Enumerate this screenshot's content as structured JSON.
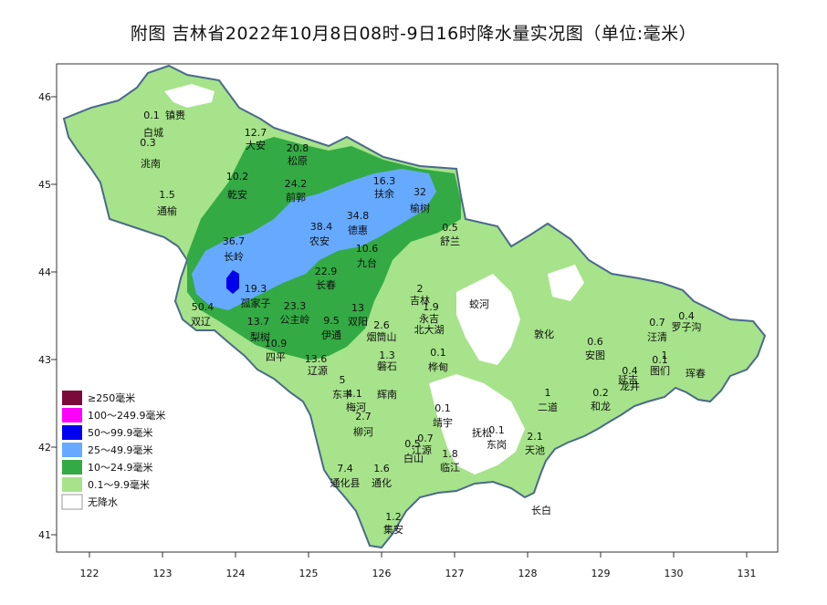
{
  "title": "附图 吉林省2022年10月8日08时-9日16时降水量实况图（单位:毫米）",
  "axes": {
    "x_ticks": [
      "122",
      "123",
      "124",
      "125",
      "126",
      "127",
      "128",
      "129",
      "130",
      "131"
    ],
    "y_ticks": [
      "46",
      "45",
      "44",
      "43",
      "42",
      "41"
    ]
  },
  "legend": [
    {
      "label": "≥250毫米",
      "color": "#7a0a3a"
    },
    {
      "label": "100～249.9毫米",
      "color": "#ff00ff"
    },
    {
      "label": "50～99.9毫米",
      "color": "#0000ee"
    },
    {
      "label": "25～49.9毫米",
      "color": "#66aaff"
    },
    {
      "label": "10～24.9毫米",
      "color": "#33aa44"
    },
    {
      "label": "0.1～9.9毫米",
      "color": "#a6e38a"
    },
    {
      "label": "无降水",
      "color": "#ffffff"
    }
  ],
  "stations": [
    {
      "name": "镇赉",
      "value": "0.1"
    },
    {
      "name": "白城",
      "value": "0.3"
    },
    {
      "name": "洮南",
      "value": ""
    },
    {
      "name": "大安",
      "value": "12.7"
    },
    {
      "name": "松原",
      "value": "20.8"
    },
    {
      "name": "前郭",
      "value": "24.2"
    },
    {
      "name": "乾安",
      "value": "10.2"
    },
    {
      "name": "通榆",
      "value": "1.5"
    },
    {
      "name": "扶余",
      "value": "16.3"
    },
    {
      "name": "榆树",
      "value": "32"
    },
    {
      "name": "农安",
      "value": "38.4"
    },
    {
      "name": "德惠",
      "value": "34.8"
    },
    {
      "name": "九台",
      "value": "10.6"
    },
    {
      "name": "舒兰",
      "value": "0.5"
    },
    {
      "name": "长岭",
      "value": "36.7"
    },
    {
      "name": "长春",
      "value": "22.9"
    },
    {
      "name": "孤家子",
      "value": "19.3"
    },
    {
      "name": "双辽",
      "value": "50.4"
    },
    {
      "name": "公主岭",
      "value": "23.3"
    },
    {
      "name": "梨树",
      "value": "13.7"
    },
    {
      "name": "四平",
      "value": "10.9"
    },
    {
      "name": "伊通",
      "value": "9.5"
    },
    {
      "name": "双阳",
      "value": "13"
    },
    {
      "name": "吉林",
      "value": "2"
    },
    {
      "name": "永吉",
      "value": "1.9"
    },
    {
      "name": "北大湖",
      "value": ""
    },
    {
      "name": "蛟河",
      "value": ""
    },
    {
      "name": "烟筒山",
      "value": "2.6"
    },
    {
      "name": "磐石",
      "value": "1.3"
    },
    {
      "name": "桦甸",
      "value": "0.1"
    },
    {
      "name": "辽源",
      "value": "13.6"
    },
    {
      "name": "东丰",
      "value": "5"
    },
    {
      "name": "梅河",
      "value": "4.1"
    },
    {
      "name": "辉南",
      "value": ""
    },
    {
      "name": "柳河",
      "value": "2.7"
    },
    {
      "name": "靖宇",
      "value": "0.1"
    },
    {
      "name": "抚松",
      "value": "0.1"
    },
    {
      "name": "东岗",
      "value": ""
    },
    {
      "name": "江源",
      "value": "0.7"
    },
    {
      "name": "白山",
      "value": "0.5"
    },
    {
      "name": "临江",
      "value": "1.8"
    },
    {
      "name": "通化县",
      "value": "7.4"
    },
    {
      "name": "通化",
      "value": "1.6"
    },
    {
      "name": "集安",
      "value": "1.2"
    },
    {
      "name": "敦化",
      "value": ""
    },
    {
      "name": "二道",
      "value": "1"
    },
    {
      "name": "天池",
      "value": "2.1"
    },
    {
      "name": "长白",
      "value": ""
    },
    {
      "name": "安图",
      "value": "0.6"
    },
    {
      "name": "和龙",
      "value": "0.2"
    },
    {
      "name": "延吉",
      "value": "0.4"
    },
    {
      "name": "龙井",
      "value": ""
    },
    {
      "name": "图们",
      "value": "0.1"
    },
    {
      "name": "汪清",
      "value": "0.7"
    },
    {
      "name": "罗子沟",
      "value": "0.4"
    },
    {
      "name": "珲春",
      "value": "1"
    }
  ]
}
